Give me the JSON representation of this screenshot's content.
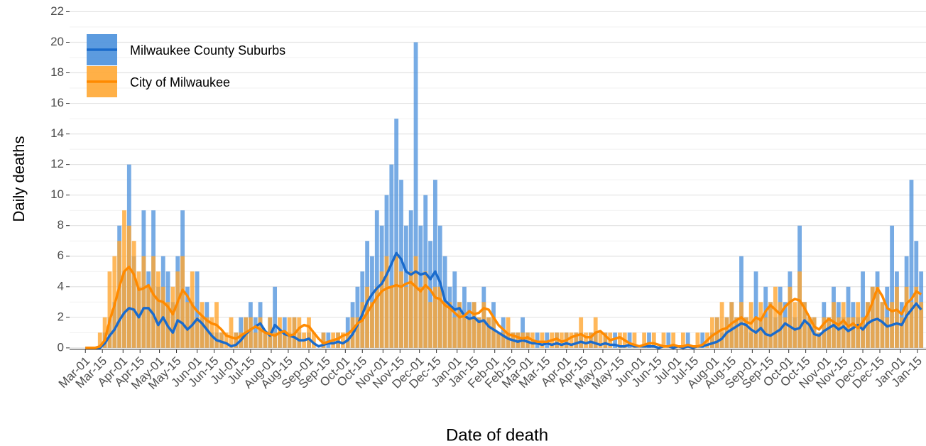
{
  "chart_data": {
    "type": "bar-line",
    "x_label": "Date of death",
    "y_label": "Daily deaths",
    "x": [
      0,
      4,
      8,
      12,
      16,
      20,
      24,
      28,
      32,
      36,
      40,
      44,
      48,
      52,
      56,
      60,
      64,
      68,
      72,
      76,
      80,
      84,
      88,
      92,
      96,
      100,
      104,
      108,
      112,
      116,
      120,
      124,
      128,
      132,
      136,
      140,
      144,
      148,
      152,
      156,
      160,
      164,
      168,
      172,
      176,
      180,
      184,
      188,
      192,
      196,
      200,
      204,
      208,
      212,
      216,
      220,
      224,
      228,
      232,
      236,
      240,
      244,
      248,
      252,
      256,
      260,
      264,
      268,
      272,
      276,
      280,
      284,
      288,
      292,
      296,
      300,
      304,
      308,
      312,
      316,
      320,
      324,
      328,
      332,
      336,
      340,
      344,
      348,
      352,
      356,
      360,
      364,
      368,
      372,
      376,
      380,
      384,
      388,
      392,
      396,
      400,
      404,
      408,
      412,
      416,
      420,
      424,
      428,
      432,
      436,
      440,
      444,
      448,
      452,
      456,
      460,
      464,
      468,
      472,
      476,
      480,
      484,
      488,
      492,
      496,
      500,
      504,
      508,
      512,
      516,
      520,
      524,
      528,
      532,
      536,
      540,
      544,
      548,
      552,
      556,
      560,
      564,
      568,
      572,
      576,
      580,
      584,
      588,
      592,
      596,
      600,
      604,
      608,
      612,
      616,
      620,
      624,
      628,
      632,
      636,
      640,
      644,
      648,
      652,
      656,
      660,
      664,
      668,
      672,
      676,
      680,
      684,
      688
    ],
    "xlim": [
      -13,
      692
    ],
    "xticks": [
      {
        "value": 0,
        "label": "Mar-01"
      },
      {
        "value": 14,
        "label": "Mar-15"
      },
      {
        "value": 31,
        "label": "Apr-01"
      },
      {
        "value": 45,
        "label": "Apr-15"
      },
      {
        "value": 61,
        "label": "May-01"
      },
      {
        "value": 75,
        "label": "May-15"
      },
      {
        "value": 92,
        "label": "Jun-01"
      },
      {
        "value": 106,
        "label": "Jun-15"
      },
      {
        "value": 122,
        "label": "Jul-01"
      },
      {
        "value": 136,
        "label": "Jul-15"
      },
      {
        "value": 153,
        "label": "Aug-01"
      },
      {
        "value": 167,
        "label": "Aug-15"
      },
      {
        "value": 184,
        "label": "Sep-01"
      },
      {
        "value": 198,
        "label": "Sep-15"
      },
      {
        "value": 214,
        "label": "Oct-01"
      },
      {
        "value": 228,
        "label": "Oct-15"
      },
      {
        "value": 245,
        "label": "Nov-01"
      },
      {
        "value": 259,
        "label": "Nov-15"
      },
      {
        "value": 275,
        "label": "Dec-01"
      },
      {
        "value": 289,
        "label": "Dec-15"
      },
      {
        "value": 306,
        "label": "Jan-01"
      },
      {
        "value": 320,
        "label": "Jan-15"
      },
      {
        "value": 337,
        "label": "Feb-01"
      },
      {
        "value": 351,
        "label": "Feb-15"
      },
      {
        "value": 365,
        "label": "Mar-01"
      },
      {
        "value": 379,
        "label": "Mar-15"
      },
      {
        "value": 396,
        "label": "Apr-01"
      },
      {
        "value": 410,
        "label": "Apr-15"
      },
      {
        "value": 426,
        "label": "May-01"
      },
      {
        "value": 440,
        "label": "May-15"
      },
      {
        "value": 457,
        "label": "Jun-01"
      },
      {
        "value": 471,
        "label": "Jun-15"
      },
      {
        "value": 487,
        "label": "Jul-01"
      },
      {
        "value": 501,
        "label": "Jul-15"
      },
      {
        "value": 518,
        "label": "Aug-01"
      },
      {
        "value": 532,
        "label": "Aug-15"
      },
      {
        "value": 549,
        "label": "Sep-01"
      },
      {
        "value": 563,
        "label": "Sep-15"
      },
      {
        "value": 579,
        "label": "Oct-01"
      },
      {
        "value": 593,
        "label": "Oct-15"
      },
      {
        "value": 610,
        "label": "Nov-01"
      },
      {
        "value": 624,
        "label": "Nov-15"
      },
      {
        "value": 640,
        "label": "Dec-01"
      },
      {
        "value": 654,
        "label": "Dec-15"
      },
      {
        "value": 671,
        "label": "Jan-01"
      },
      {
        "value": 685,
        "label": "Jan-15"
      }
    ],
    "ylim": [
      -0.1,
      22.3
    ],
    "yticks": [
      0,
      2,
      4,
      6,
      8,
      10,
      12,
      14,
      16,
      18,
      20,
      22
    ],
    "grid": true,
    "legend": "top-left",
    "series": [
      {
        "name": "Milwaukee County Suburbs",
        "color": "#4a90dc",
        "line_color": "#1a6bcc",
        "values": [
          0,
          0,
          0,
          0,
          1,
          2,
          3,
          8,
          5,
          12,
          6,
          4,
          9,
          5,
          9,
          4,
          6,
          5,
          3,
          6,
          9,
          4,
          3,
          5,
          2,
          3,
          1,
          1,
          1,
          0,
          0,
          1,
          2,
          2,
          3,
          2,
          3,
          1,
          2,
          4,
          1,
          2,
          1,
          2,
          1,
          0,
          1,
          0,
          0,
          1,
          1,
          0,
          1,
          0,
          2,
          3,
          4,
          5,
          7,
          6,
          9,
          8,
          10,
          12,
          15,
          11,
          8,
          9,
          20,
          8,
          10,
          7,
          11,
          8,
          6,
          4,
          5,
          3,
          4,
          3,
          3,
          2,
          4,
          2,
          3,
          1,
          2,
          1,
          1,
          1,
          2,
          1,
          0,
          1,
          0,
          1,
          0,
          1,
          0,
          1,
          0,
          1,
          1,
          0,
          1,
          1,
          0,
          1,
          0,
          1,
          0,
          0,
          1,
          0,
          0,
          0,
          1,
          0,
          0,
          0,
          1,
          0,
          0,
          0,
          1,
          0,
          0,
          1,
          0,
          1,
          2,
          1,
          2,
          3,
          2,
          6,
          2,
          1,
          5,
          2,
          4,
          3,
          2,
          4,
          3,
          5,
          2,
          8,
          3,
          2,
          2,
          1,
          3,
          2,
          4,
          3,
          2,
          4,
          3,
          2,
          5,
          3,
          4,
          5,
          3,
          4,
          8,
          5,
          3,
          6,
          11,
          7,
          5
        ],
        "average": [
          0,
          0,
          0,
          0,
          0.3,
          0.8,
          1.2,
          1.8,
          2.3,
          2.6,
          2.5,
          2.0,
          2.6,
          2.6,
          2.2,
          1.5,
          2.0,
          1.4,
          1.0,
          1.8,
          1.6,
          1.2,
          1.5,
          1.9,
          1.6,
          1.2,
          0.8,
          0.5,
          0.4,
          0.3,
          0.1,
          0.2,
          0.5,
          0.9,
          1.2,
          1.4,
          1.6,
          1.1,
          0.8,
          1.5,
          1.2,
          0.9,
          0.8,
          0.7,
          0.5,
          0.5,
          0.6,
          0.3,
          0.1,
          0.2,
          0.3,
          0.3,
          0.4,
          0.3,
          0.5,
          0.9,
          1.5,
          2.2,
          3.0,
          3.5,
          3.9,
          4.2,
          4.8,
          5.5,
          6.2,
          5.8,
          5.0,
          4.8,
          5.0,
          4.8,
          4.9,
          4.5,
          5.0,
          4.3,
          3.1,
          2.8,
          2.5,
          2.6,
          2.1,
          1.9,
          2.0,
          1.7,
          1.8,
          1.4,
          1.2,
          1.0,
          0.8,
          0.6,
          0.5,
          0.4,
          0.5,
          0.4,
          0.3,
          0.3,
          0.2,
          0.3,
          0.2,
          0.3,
          0.2,
          0.3,
          0.2,
          0.3,
          0.4,
          0.3,
          0.4,
          0.3,
          0.2,
          0.3,
          0.2,
          0.2,
          0.1,
          0.1,
          0.2,
          0.1,
          0.1,
          0.1,
          0.1,
          0.1,
          0,
          0.1,
          0.1,
          0,
          0.1,
          0,
          0.1,
          0,
          0.1,
          0.1,
          0.2,
          0.3,
          0.4,
          0.6,
          1.0,
          1.2,
          1.4,
          1.6,
          1.5,
          1.2,
          1.0,
          1.3,
          0.9,
          0.8,
          1.0,
          1.2,
          1.6,
          1.4,
          1.2,
          1.3,
          1.8,
          1.5,
          0.9,
          0.8,
          1.1,
          1.3,
          1.5,
          1.2,
          1.4,
          1.1,
          1.3,
          1.5,
          1.2,
          1.6,
          1.8,
          1.9,
          1.7,
          1.4,
          1.5,
          1.6,
          1.5,
          2.1,
          2.5,
          2.9,
          2.5
        ]
      },
      {
        "name": "City of Milwaukee",
        "color": "#ffa733",
        "line_color": "#ff8a00",
        "values": [
          0,
          0,
          0,
          1,
          2,
          5,
          6,
          7,
          9,
          8,
          7,
          5,
          6,
          4,
          6,
          5,
          4,
          3,
          4,
          5,
          6,
          3,
          5,
          2,
          3,
          2,
          2,
          3,
          1,
          1,
          2,
          1,
          1,
          2,
          2,
          1,
          2,
          1,
          2,
          1,
          2,
          1,
          2,
          2,
          2,
          1,
          2,
          1,
          0,
          1,
          0,
          1,
          1,
          1,
          1,
          2,
          2,
          3,
          4,
          3,
          4,
          5,
          6,
          4,
          6,
          5,
          4,
          5,
          6,
          4,
          5,
          3,
          4,
          4,
          3,
          3,
          2,
          3,
          2,
          2,
          3,
          2,
          3,
          2,
          2,
          1,
          1,
          2,
          1,
          1,
          1,
          1,
          1,
          0,
          1,
          0,
          1,
          1,
          1,
          1,
          1,
          1,
          2,
          1,
          1,
          2,
          1,
          1,
          1,
          0,
          1,
          1,
          0,
          1,
          0,
          1,
          0,
          1,
          0,
          1,
          0,
          1,
          0,
          1,
          0,
          0,
          1,
          0,
          1,
          2,
          2,
          3,
          2,
          3,
          2,
          3,
          2,
          3,
          2,
          3,
          2,
          3,
          4,
          3,
          2,
          4,
          3,
          5,
          3,
          2,
          2,
          1,
          2,
          2,
          3,
          2,
          3,
          2,
          2,
          3,
          2,
          3,
          4,
          4,
          3,
          2,
          3,
          4,
          2,
          4,
          3,
          4,
          3
        ],
        "average": [
          0,
          0,
          0,
          0.1,
          0.5,
          1.8,
          2.8,
          4.0,
          5.0,
          5.3,
          4.8,
          3.8,
          3.9,
          4.1,
          3.5,
          3.1,
          3.0,
          2.7,
          2.2,
          3.0,
          3.8,
          3.4,
          2.8,
          2.4,
          2.1,
          1.8,
          1.6,
          1.5,
          1.2,
          0.8,
          0.7,
          0.6,
          0.8,
          1.0,
          1.2,
          1.4,
          1.2,
          1.0,
          0.9,
          0.8,
          1.0,
          1.1,
          0.8,
          0.9,
          1.3,
          1.5,
          1.4,
          1.0,
          0.6,
          0.3,
          0.4,
          0.5,
          0.6,
          0.8,
          0.9,
          1.2,
          1.6,
          1.8,
          2.3,
          2.8,
          3.3,
          3.7,
          3.9,
          4.0,
          4.1,
          4.0,
          4.2,
          4.3,
          4.0,
          3.7,
          4.1,
          3.8,
          3.3,
          3.2,
          2.8,
          2.6,
          2.3,
          2.0,
          2.1,
          2.4,
          2.2,
          2.3,
          2.6,
          2.5,
          2.0,
          1.5,
          1.2,
          0.9,
          0.8,
          0.7,
          0.6,
          0.7,
          0.5,
          0.4,
          0.4,
          0.4,
          0.5,
          0.6,
          0.4,
          0.5,
          0.7,
          0.8,
          0.9,
          0.7,
          0.7,
          1.0,
          1.1,
          0.8,
          0.5,
          0.6,
          0.7,
          0.5,
          0.3,
          0.2,
          0.1,
          0.2,
          0.3,
          0.3,
          0.2,
          0.1,
          0.1,
          0.2,
          0.1,
          0.1,
          0.2,
          0.1,
          0.1,
          0.2,
          0.5,
          0.8,
          1.0,
          1.2,
          1.3,
          1.6,
          1.8,
          2.0,
          1.7,
          1.6,
          2.0,
          1.8,
          2.4,
          2.8,
          2.5,
          2.2,
          2.7,
          3.0,
          3.2,
          3.1,
          2.6,
          2.0,
          1.4,
          1.2,
          1.6,
          1.9,
          1.7,
          1.5,
          1.8,
          1.4,
          1.6,
          1.3,
          1.7,
          2.2,
          3.0,
          3.9,
          3.4,
          2.6,
          2.4,
          2.5,
          2.2,
          2.9,
          3.2,
          3.7,
          3.5
        ]
      }
    ]
  }
}
